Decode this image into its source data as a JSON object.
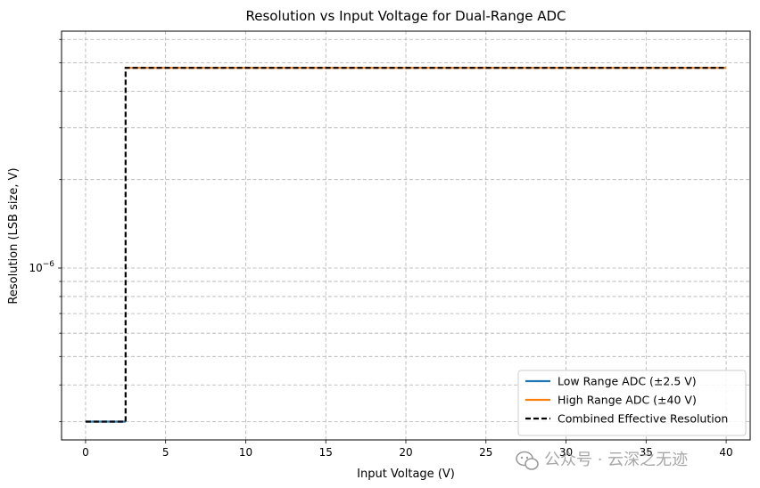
{
  "chart_data": {
    "type": "line",
    "title": "Resolution vs Input Voltage for Dual-Range ADC",
    "xlabel": "Input Voltage (V)",
    "ylabel": "Resolution (LSB size, V)",
    "xlim": [
      -1.5,
      41.5
    ],
    "ylim": [
      2.6e-07,
      6.4e-06
    ],
    "yscale": "log",
    "grid": true,
    "x_ticks": [
      0,
      5,
      10,
      15,
      20,
      25,
      30,
      35,
      40
    ],
    "y_tick_label_base": "10",
    "y_tick_label_exp": "−6",
    "y_tick_value": 1e-06,
    "legend_position": "lower-right",
    "series": [
      {
        "name": "Low Range ADC (±2.5 V)",
        "color": "#1f77b4",
        "style": "solid",
        "x": [
          0,
          2.5
        ],
        "y": [
          3e-07,
          3e-07
        ]
      },
      {
        "name": "High Range ADC (±40 V)",
        "color": "#ff7f0e",
        "style": "solid",
        "x": [
          2.5,
          40
        ],
        "y": [
          4.8e-06,
          4.8e-06
        ]
      },
      {
        "name": "Combined Effective Resolution",
        "color": "#000000",
        "style": "dashed",
        "x": [
          0,
          2.5,
          2.5,
          40
        ],
        "y": [
          3e-07,
          3e-07,
          4.8e-06,
          4.8e-06
        ]
      }
    ]
  },
  "watermark": {
    "icon": "wechat-icon",
    "text": "公众号 · 云深之无迹"
  }
}
